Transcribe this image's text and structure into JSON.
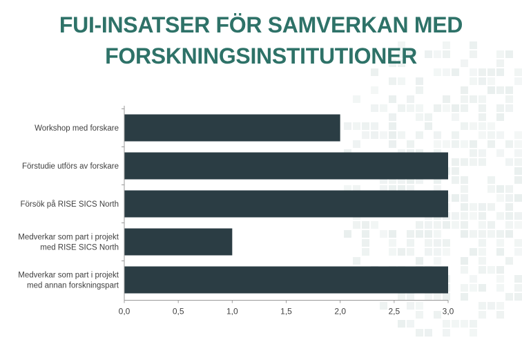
{
  "title_lines": [
    "FUI-INSATSER FÖR SAMVERKAN MED",
    "FORSKNINGSINSTITUTIONER"
  ],
  "colors": {
    "title": "#2e7268",
    "bar": "#2b3d44",
    "axis": "#9a9a9a",
    "text": "#404040",
    "pattern": "#e9efee"
  },
  "chart_data": {
    "type": "bar",
    "orientation": "horizontal",
    "categories": [
      [
        "Workshop med forskare"
      ],
      [
        "Förstudie utförs av forskare"
      ],
      [
        "Försök på RISE SICS North"
      ],
      [
        "Medverkar som part i projekt",
        "med RISE SICS North"
      ],
      [
        "Medverkar som part i projekt",
        "med annan forskningspart"
      ]
    ],
    "values": [
      2,
      3,
      3,
      1,
      3
    ],
    "xlim": [
      0,
      3
    ],
    "xticks": [
      "0,0",
      "0,5",
      "1,0",
      "1,5",
      "2,0",
      "2,5",
      "3,0"
    ],
    "xlabel": "",
    "ylabel": "",
    "grid": false
  }
}
